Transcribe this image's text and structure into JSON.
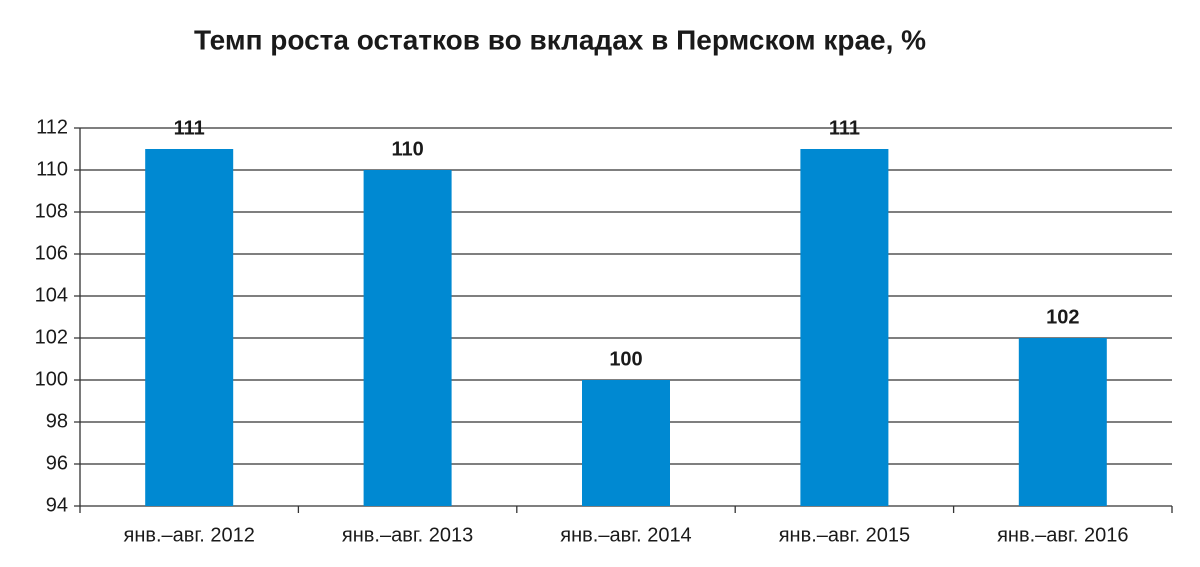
{
  "chart_data": {
    "type": "bar",
    "title": "Темп роста остатков во вкладах в Пермском крае, %",
    "categories": [
      "янв.–авг. 2012",
      "янв.–авг. 2013",
      "янв.–авг. 2014",
      "янв.–авг. 2015",
      "янв.–авг. 2016"
    ],
    "values": [
      111,
      110,
      100,
      111,
      102
    ],
    "color": "#0089d2",
    "ylim": [
      94,
      112
    ],
    "yticks": [
      94,
      96,
      98,
      100,
      102,
      104,
      106,
      108,
      110,
      112
    ],
    "grid": true
  }
}
